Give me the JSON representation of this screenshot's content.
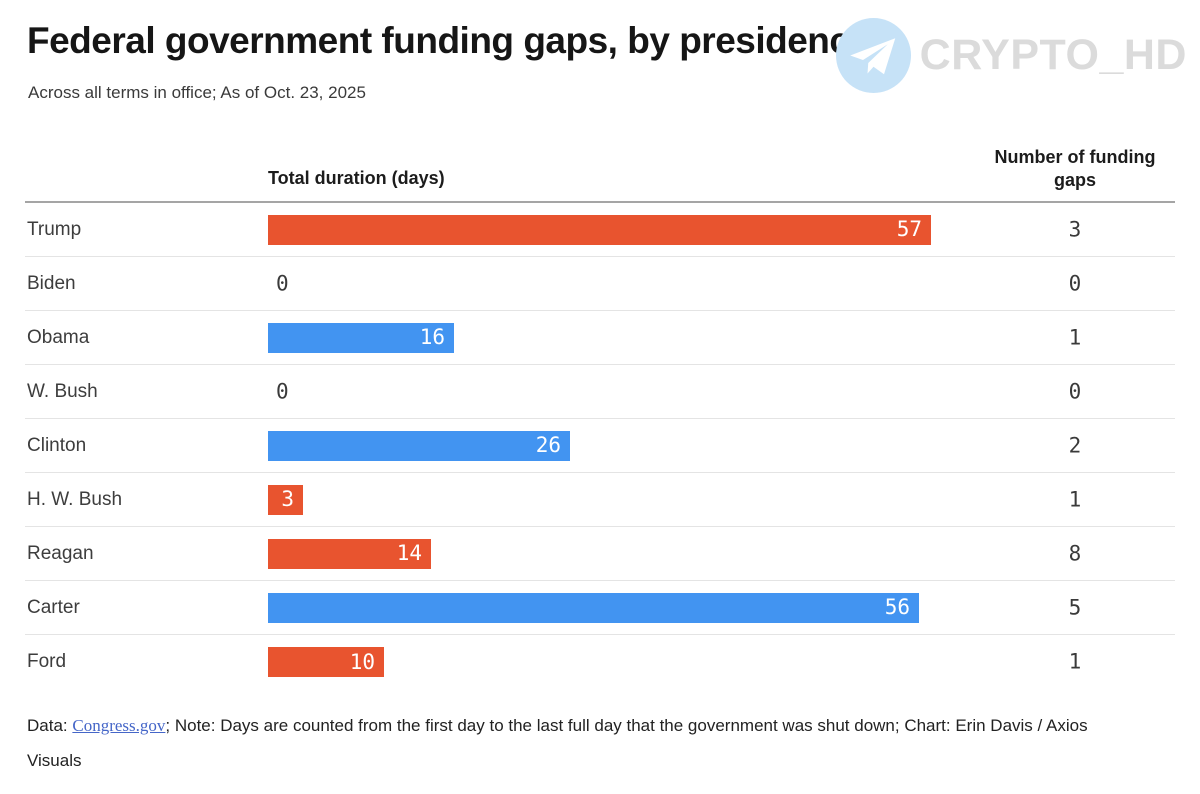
{
  "header": {
    "title": "Federal government funding gaps, by presidency",
    "subtitle": "Across all terms in office; As of Oct. 23, 2025",
    "watermark": "CRYPTO_HD",
    "watermark_icon": "telegram-paper-plane-icon"
  },
  "table": {
    "columns": {
      "duration": "Total duration (days)",
      "gaps": "Number of funding gaps"
    }
  },
  "chart_data": {
    "type": "bar",
    "orientation": "horizontal",
    "title": "Federal government funding gaps, by presidency",
    "subtitle": "Across all terms in office; As of Oct. 23, 2025",
    "xlabel": "Total duration (days)",
    "x_max": 57,
    "grid": false,
    "legend": false,
    "categories": [
      "Trump",
      "Biden",
      "Obama",
      "W. Bush",
      "Clinton",
      "H. W. Bush",
      "Reagan",
      "Carter",
      "Ford"
    ],
    "series": [
      {
        "name": "Total duration (days)",
        "values": [
          57,
          0,
          16,
          0,
          26,
          3,
          14,
          56,
          10
        ]
      },
      {
        "name": "Number of funding gaps",
        "values": [
          3,
          0,
          1,
          0,
          2,
          1,
          8,
          5,
          1
        ]
      }
    ],
    "rows": [
      {
        "president": "Trump",
        "duration": 57,
        "gaps": 3,
        "color": "#E8542F"
      },
      {
        "president": "Biden",
        "duration": 0,
        "gaps": 0,
        "color": "#4294F1"
      },
      {
        "president": "Obama",
        "duration": 16,
        "gaps": 1,
        "color": "#4294F1"
      },
      {
        "president": "W. Bush",
        "duration": 0,
        "gaps": 0,
        "color": "#E8542F"
      },
      {
        "president": "Clinton",
        "duration": 26,
        "gaps": 2,
        "color": "#4294F1"
      },
      {
        "president": "H. W. Bush",
        "duration": 3,
        "gaps": 1,
        "color": "#E8542F"
      },
      {
        "president": "Reagan",
        "duration": 14,
        "gaps": 8,
        "color": "#E8542F"
      },
      {
        "president": "Carter",
        "duration": 56,
        "gaps": 5,
        "color": "#4294F1"
      },
      {
        "president": "Ford",
        "duration": 10,
        "gaps": 1,
        "color": "#E8542F"
      }
    ],
    "bar_colors": {
      "orange": "#E8542F",
      "blue": "#4294F1"
    }
  },
  "footer": {
    "prefix": "Data: ",
    "link_text": "Congress.gov",
    "line1_rest": "; Note: Days are counted from the first day to the last full day that the government was shut down; Chart: Erin Davis / Axios",
    "line2": "Visuals"
  }
}
